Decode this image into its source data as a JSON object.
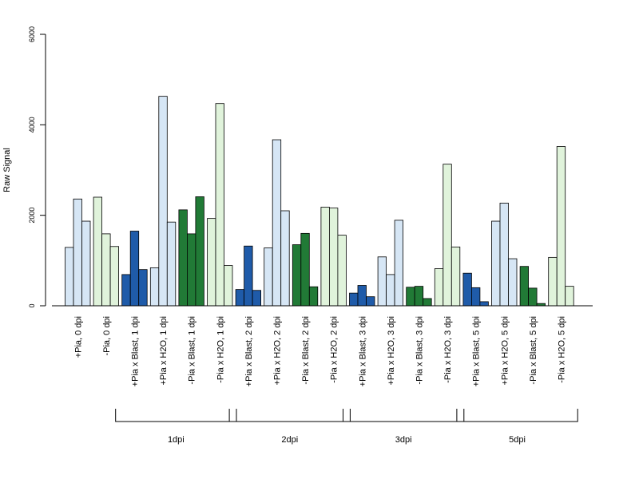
{
  "chart_data": {
    "type": "bar",
    "ylabel": "Raw Signal",
    "ylim": [
      0,
      6000
    ],
    "yticks": [
      0,
      2000,
      4000,
      6000
    ],
    "grid": false,
    "categories": [
      "+Pia, 0 dpi",
      "-Pia, 0 dpi",
      "+Pia x Blast, 1 dpi",
      "+Pia x H2O, 1 dpi",
      "-Pia x Blast, 1 dpi",
      "-Pia x H2O, 1 dpi",
      "+Pia x Blast, 2 dpi",
      "+Pia x H2O, 2 dpi",
      "-Pia x Blast, 2 dpi",
      "-Pia x H2O, 2 dpi",
      "+Pia x Blast, 3 dpi",
      "+Pia x H2O, 3 dpi",
      "-Pia x Blast, 3 dpi",
      "-Pia x H2O, 3 dpi",
      "+Pia x Blast, 5 dpi",
      "+Pia x H2O, 5 dpi",
      "-Pia x Blast, 5 dpi",
      "-Pia x H2O, 5 dpi"
    ],
    "replicates": [
      [
        1290,
        2360,
        1870
      ],
      [
        2400,
        1590,
        1310
      ],
      [
        690,
        1650,
        800
      ],
      [
        840,
        4630,
        1850
      ],
      [
        2120,
        1590,
        2410
      ],
      [
        1930,
        4470,
        890
      ],
      [
        360,
        1320,
        340
      ],
      [
        1280,
        3670,
        2100
      ],
      [
        1350,
        1600,
        420
      ],
      [
        2180,
        2160,
        1560
      ],
      [
        280,
        450,
        200
      ],
      [
        1080,
        690,
        1890
      ],
      [
        410,
        430,
        160
      ],
      [
        820,
        3130,
        1300
      ],
      [
        720,
        400,
        90
      ],
      [
        1870,
        2270,
        1040
      ],
      [
        870,
        390,
        50
      ],
      [
        1070,
        3520,
        430
      ]
    ],
    "colors": [
      "#D6E6F5",
      "#E0F3DB",
      "#1F5BA9",
      "#D6E6F5",
      "#217A36",
      "#E0F3DB",
      "#1F5BA9",
      "#D6E6F5",
      "#217A36",
      "#E0F3DB",
      "#1F5BA9",
      "#D6E6F5",
      "#217A36",
      "#E0F3DB",
      "#1F5BA9",
      "#D6E6F5",
      "#217A36",
      "#E0F3DB"
    ],
    "groups": [
      {
        "label": "1dpi",
        "from": 2,
        "to": 5
      },
      {
        "label": "2dpi",
        "from": 6,
        "to": 9
      },
      {
        "label": "3dpi",
        "from": 10,
        "to": 13
      },
      {
        "label": "5dpi",
        "from": 14,
        "to": 17
      }
    ]
  }
}
